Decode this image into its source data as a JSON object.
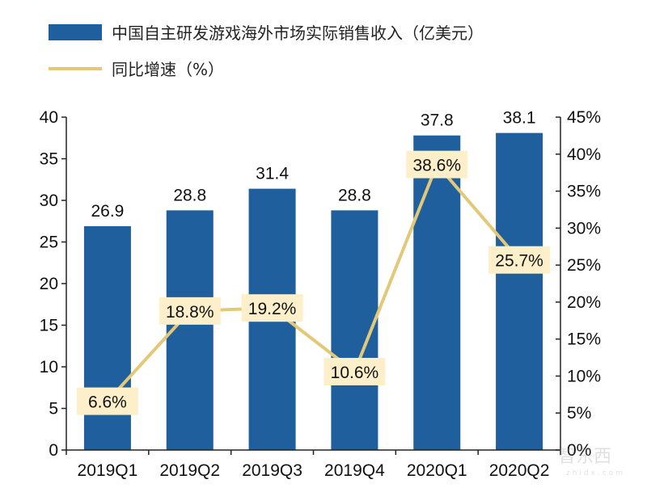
{
  "chart_data": {
    "type": "bar+line",
    "categories": [
      "2019Q1",
      "2019Q2",
      "2019Q3",
      "2019Q4",
      "2020Q1",
      "2020Q2"
    ],
    "series": [
      {
        "name": "中国自主研发游戏海外市场实际销售收入（亿美元）",
        "type": "bar",
        "axis": "left",
        "values": [
          26.9,
          28.8,
          31.4,
          28.8,
          37.8,
          38.1
        ],
        "labels": [
          "26.9",
          "28.8",
          "31.4",
          "28.8",
          "37.8",
          "38.1"
        ]
      },
      {
        "name": "同比增速（%）",
        "type": "line",
        "axis": "right",
        "values": [
          6.6,
          18.8,
          19.2,
          10.6,
          38.6,
          25.7
        ],
        "labels": [
          "6.6%",
          "18.8%",
          "19.2%",
          "10.6%",
          "38.6%",
          "25.7%"
        ]
      }
    ],
    "left_axis": {
      "ylim": [
        0,
        40
      ],
      "ticks": [
        "0",
        "5",
        "10",
        "15",
        "20",
        "25",
        "30",
        "35",
        "40"
      ]
    },
    "right_axis": {
      "ylim": [
        0,
        45
      ],
      "ticks": [
        "0%",
        "5%",
        "10%",
        "15%",
        "20%",
        "25%",
        "30%",
        "35%",
        "40%",
        "45%"
      ]
    },
    "legend_placement": "top-left",
    "grid": false,
    "colors": {
      "bar": "#1f5f9e",
      "line": "#e3c878",
      "label_box": "#fcefc9"
    }
  },
  "watermark": {
    "text": "智东西",
    "sub": "zhidx.com"
  }
}
